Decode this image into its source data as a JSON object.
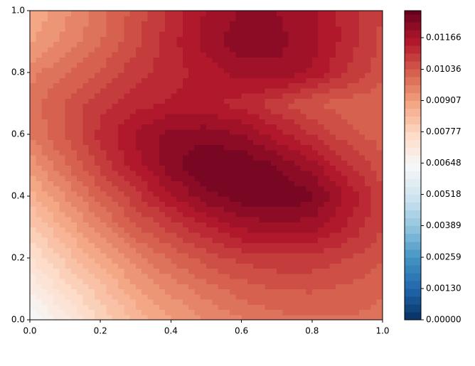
{
  "chart_data": {
    "type": "contourf",
    "x": [
      0,
      0.1,
      0.2,
      0.3,
      0.4,
      0.5,
      0.6,
      0.7,
      0.8,
      0.9,
      1
    ],
    "y": [
      0,
      0.1,
      0.2,
      0.3,
      0.4,
      0.5,
      0.6,
      0.7,
      0.8,
      0.9,
      1
    ],
    "z": [
      [
        0.0062,
        0.007,
        0.0078,
        0.0085,
        0.009,
        0.0094,
        0.0097,
        0.0099,
        0.01,
        0.01,
        0.0099
      ],
      [
        0.0068,
        0.0076,
        0.0083,
        0.009,
        0.0095,
        0.0099,
        0.0102,
        0.0104,
        0.0104,
        0.0103,
        0.0101
      ],
      [
        0.0074,
        0.0082,
        0.0089,
        0.0096,
        0.0101,
        0.0105,
        0.0108,
        0.0109,
        0.0109,
        0.0107,
        0.0104
      ],
      [
        0.008,
        0.0088,
        0.0096,
        0.0103,
        0.0108,
        0.0113,
        0.0117,
        0.0119,
        0.0118,
        0.0113,
        0.0107
      ],
      [
        0.0086,
        0.0094,
        0.0102,
        0.0109,
        0.0116,
        0.0122,
        0.0125,
        0.0126,
        0.0124,
        0.0116,
        0.0108
      ],
      [
        0.0092,
        0.01,
        0.0108,
        0.0115,
        0.0122,
        0.0126,
        0.0126,
        0.0123,
        0.0118,
        0.0111,
        0.0105
      ],
      [
        0.0097,
        0.0104,
        0.0111,
        0.0117,
        0.0121,
        0.0122,
        0.012,
        0.0115,
        0.011,
        0.0105,
        0.0102
      ],
      [
        0.0099,
        0.0104,
        0.0109,
        0.0112,
        0.0114,
        0.0114,
        0.0112,
        0.0108,
        0.0104,
        0.0102,
        0.0101
      ],
      [
        0.0096,
        0.01,
        0.0104,
        0.0109,
        0.0112,
        0.0115,
        0.0118,
        0.0119,
        0.0116,
        0.011,
        0.0105
      ],
      [
        0.009,
        0.0095,
        0.01,
        0.0106,
        0.0112,
        0.0118,
        0.0122,
        0.0121,
        0.0118,
        0.0112,
        0.0106
      ],
      [
        0.0088,
        0.0093,
        0.0099,
        0.0105,
        0.0111,
        0.0117,
        0.012,
        0.012,
        0.0117,
        0.0112,
        0.0107
      ]
    ],
    "xlim": [
      0,
      1
    ],
    "ylim": [
      0,
      1
    ],
    "xticks": [
      {
        "value": 0,
        "label": "0.0"
      },
      {
        "value": 0.2,
        "label": "0.2"
      },
      {
        "value": 0.4,
        "label": "0.4"
      },
      {
        "value": 0.6,
        "label": "0.6"
      },
      {
        "value": 0.8,
        "label": "0.8"
      },
      {
        "value": 1,
        "label": "1.0"
      }
    ],
    "yticks": [
      {
        "value": 0,
        "label": "0.0"
      },
      {
        "value": 0.2,
        "label": "0.2"
      },
      {
        "value": 0.4,
        "label": "0.4"
      },
      {
        "value": 0.6,
        "label": "0.6"
      },
      {
        "value": 0.8,
        "label": "0.8"
      },
      {
        "value": 1,
        "label": "1.0"
      }
    ],
    "clim": [
      0,
      0.01278
    ],
    "level_step": 0.0003239,
    "colormap": [
      "#053061",
      "#2166ac",
      "#4393c3",
      "#92c5de",
      "#d1e5f0",
      "#f7f7f7",
      "#fddbc7",
      "#f4a582",
      "#d6604d",
      "#b2182b",
      "#67001f"
    ],
    "cticks": [
      {
        "value": 0,
        "label": "0.00000"
      },
      {
        "value": 0.0013,
        "label": "0.00130"
      },
      {
        "value": 0.00259,
        "label": "0.00259"
      },
      {
        "value": 0.00389,
        "label": "0.00389"
      },
      {
        "value": 0.00518,
        "label": "0.00518"
      },
      {
        "value": 0.00648,
        "label": "0.00648"
      },
      {
        "value": 0.00777,
        "label": "0.00777"
      },
      {
        "value": 0.00907,
        "label": "0.00907"
      },
      {
        "value": 0.01036,
        "label": "0.01036"
      },
      {
        "value": 0.01166,
        "label": "0.01166"
      }
    ]
  }
}
